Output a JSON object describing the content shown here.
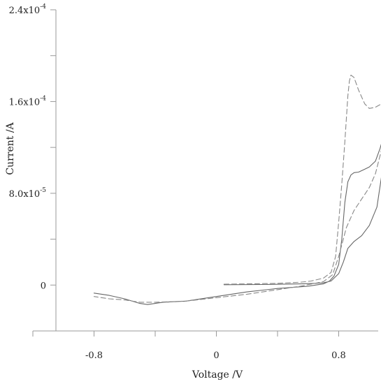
{
  "chart_data": {
    "type": "line",
    "xlabel": "Voltage /V",
    "ylabel": "Current /A",
    "xlim": [
      -1.2,
      1.2
    ],
    "ylim": [
      -4e-05,
      0.00024
    ],
    "grid": false,
    "x_ticks": [
      {
        "value": -1.2,
        "label": ""
      },
      {
        "value": -0.8,
        "label": "-0.8"
      },
      {
        "value": -0.4,
        "label": ""
      },
      {
        "value": 0,
        "label": "0"
      },
      {
        "value": 0.4,
        "label": ""
      },
      {
        "value": 0.8,
        "label": "0.8"
      },
      {
        "value": 1.2,
        "label": ""
      }
    ],
    "y_ticks": [
      {
        "value": -4e-05,
        "label": "",
        "exp": ""
      },
      {
        "value": 0,
        "label": "0",
        "exp": ""
      },
      {
        "value": 4e-05,
        "label": "",
        "exp": ""
      },
      {
        "value": 8e-05,
        "label": "8.0x10",
        "exp": "-5"
      },
      {
        "value": 0.00012,
        "label": "",
        "exp": ""
      },
      {
        "value": 0.00016,
        "label": "1.6x10",
        "exp": "-4"
      },
      {
        "value": 0.0002,
        "label": "",
        "exp": ""
      },
      {
        "value": 0.00024,
        "label": "2.4x10",
        "exp": "-4"
      }
    ],
    "series": [
      {
        "style": "solid",
        "color": "#666666",
        "points": [
          [
            0.05,
            3e-07
          ],
          [
            0.3,
            5e-07
          ],
          [
            0.55,
            1e-06
          ],
          [
            0.65,
            1.5e-06
          ],
          [
            0.7,
            2e-06
          ],
          [
            0.75,
            3.5e-06
          ],
          [
            0.8,
            1e-05
          ],
          [
            0.83,
            2e-05
          ],
          [
            0.86,
            3.2e-05
          ],
          [
            0.9,
            3.8e-05
          ],
          [
            0.95,
            4.3e-05
          ],
          [
            1.0,
            5.2e-05
          ],
          [
            1.05,
            6.8e-05
          ],
          [
            1.08,
            9.5e-05
          ],
          [
            1.11,
            0.000125
          ],
          [
            1.14,
            0.000151
          ],
          [
            1.13,
            0.000148
          ],
          [
            1.1,
            0.000133
          ],
          [
            1.07,
            0.000119
          ],
          [
            1.04,
            0.000108
          ],
          [
            1.0,
            0.000103
          ],
          [
            0.97,
            0.000101
          ],
          [
            0.93,
            9.85e-05
          ],
          [
            0.9,
            9.8e-05
          ],
          [
            0.88,
            9.6e-05
          ],
          [
            0.86,
            9e-05
          ],
          [
            0.84,
            7.2e-05
          ],
          [
            0.82,
            4e-05
          ],
          [
            0.8,
            1.8e-05
          ],
          [
            0.77,
            8e-06
          ],
          [
            0.74,
            3.5e-06
          ],
          [
            0.7,
            1e-06
          ],
          [
            0.6,
            -1e-06
          ],
          [
            0.4,
            -3e-06
          ],
          [
            0.2,
            -6e-06
          ],
          [
            0.0,
            -1e-05
          ],
          [
            -0.2,
            -1.4e-05
          ],
          [
            -0.35,
            -1.5e-05
          ],
          [
            -0.45,
            -1.7e-05
          ],
          [
            -0.5,
            -1.6e-05
          ],
          [
            -0.6,
            -1.2e-05
          ],
          [
            -0.7,
            -9e-06
          ],
          [
            -0.8,
            -7e-06
          ]
        ]
      },
      {
        "style": "dashed",
        "color": "#888888",
        "points": [
          [
            0.05,
            8e-07
          ],
          [
            0.2,
            1e-06
          ],
          [
            0.4,
            1.5e-06
          ],
          [
            0.55,
            2.5e-06
          ],
          [
            0.62,
            3.5e-06
          ],
          [
            0.7,
            6e-06
          ],
          [
            0.75,
            1.1e-05
          ],
          [
            0.78,
            2.5e-05
          ],
          [
            0.8,
            5.5e-05
          ],
          [
            0.82,
            8.8e-05
          ],
          [
            0.84,
            0.000125
          ],
          [
            0.86,
            0.000165
          ],
          [
            0.87,
            0.000178
          ],
          [
            0.88,
            0.000183
          ],
          [
            0.9,
            0.000181
          ],
          [
            0.93,
            0.00017
          ],
          [
            0.97,
            0.000158
          ],
          [
            1.0,
            0.000154
          ],
          [
            1.04,
            0.000155
          ],
          [
            1.08,
            0.000158
          ],
          [
            1.11,
            0.000161
          ],
          [
            1.14,
            0.000164
          ],
          [
            1.12,
            0.000141
          ],
          [
            1.08,
            0.000118
          ],
          [
            1.04,
            9.7e-05
          ],
          [
            1.0,
            8.5e-05
          ],
          [
            0.95,
            7.5e-05
          ],
          [
            0.9,
            6.5e-05
          ],
          [
            0.85,
            5e-05
          ],
          [
            0.8,
            2.5e-05
          ],
          [
            0.76,
            9e-06
          ],
          [
            0.7,
            3e-06
          ],
          [
            0.55,
            -1e-06
          ],
          [
            0.4,
            -4e-06
          ],
          [
            0.2,
            -8e-06
          ],
          [
            0.0,
            -1.1e-05
          ],
          [
            -0.2,
            -1.4e-05
          ],
          [
            -0.4,
            -1.5e-05
          ],
          [
            -0.5,
            -1.5e-05
          ],
          [
            -0.6,
            -1.3e-05
          ],
          [
            -0.7,
            -1.2e-05
          ],
          [
            -0.8,
            -1e-05
          ]
        ]
      }
    ]
  }
}
